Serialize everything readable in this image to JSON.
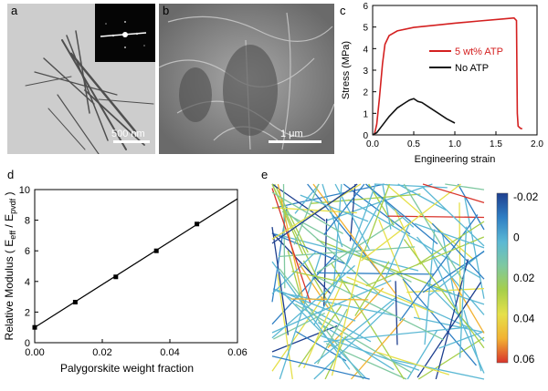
{
  "panels": {
    "a": {
      "label": "a",
      "scale": "500 nm"
    },
    "b": {
      "label": "b",
      "scale": "1 μm"
    },
    "c": {
      "label": "c"
    },
    "d": {
      "label": "d"
    },
    "e": {
      "label": "e"
    }
  },
  "chart_data": [
    {
      "id": "c",
      "type": "line",
      "xlabel": "Engineering strain",
      "ylabel": "Stress (MPa)",
      "xlim": [
        0,
        2.0
      ],
      "ylim": [
        0,
        6
      ],
      "xticks": [
        "0.0",
        "0.5",
        "1.0",
        "1.5",
        "2.0"
      ],
      "yticks": [
        "0",
        "1",
        "2",
        "3",
        "4",
        "5",
        "6"
      ],
      "legend_position": "right",
      "series": [
        {
          "name": "5 wt% ATP",
          "color": "#d42020",
          "x": [
            0.02,
            0.05,
            0.08,
            0.12,
            0.15,
            0.2,
            0.3,
            0.5,
            0.8,
            1.0,
            1.3,
            1.6,
            1.72,
            1.75,
            1.76,
            1.77,
            1.8,
            1.82
          ],
          "y": [
            0.0,
            0.5,
            1.6,
            3.3,
            4.2,
            4.6,
            4.82,
            4.98,
            5.1,
            5.18,
            5.28,
            5.38,
            5.42,
            5.3,
            1.0,
            0.4,
            0.3,
            0.28
          ]
        },
        {
          "name": "No ATP",
          "color": "#111111",
          "x": [
            0.0,
            0.05,
            0.1,
            0.15,
            0.2,
            0.3,
            0.4,
            0.45,
            0.5,
            0.55,
            0.6,
            0.7,
            0.8,
            0.9,
            1.0
          ],
          "y": [
            0.0,
            0.1,
            0.35,
            0.6,
            0.85,
            1.25,
            1.5,
            1.62,
            1.68,
            1.55,
            1.5,
            1.25,
            1.0,
            0.75,
            0.55
          ]
        }
      ]
    },
    {
      "id": "d",
      "type": "scatter",
      "xlabel": "Palygorskite weight fraction",
      "ylabel": "Relative Modulus ( E",
      "ylabel_sub1": "eff",
      "ylabel_mid": " / E",
      "ylabel_sub2": "pvdf",
      "ylabel_end": " )",
      "xlim": [
        0,
        0.06
      ],
      "ylim": [
        0,
        10
      ],
      "xticks": [
        "0.00",
        "0.02",
        "0.04",
        "0.06"
      ],
      "yticks": [
        "0",
        "2",
        "4",
        "6",
        "8",
        "10"
      ],
      "points": {
        "x": [
          0.0,
          0.012,
          0.024,
          0.036,
          0.048
        ],
        "y": [
          1.0,
          2.65,
          4.3,
          6.0,
          7.75
        ]
      },
      "fit_line": {
        "x": [
          0.0,
          0.06
        ],
        "y": [
          1.0,
          9.4
        ]
      }
    },
    {
      "id": "e",
      "type": "heatmap",
      "colorbar_ticks": [
        "-0.02",
        "0",
        "0.02",
        "0.04",
        "0.06"
      ],
      "colorbar_range": [
        -0.02,
        0.06
      ],
      "colors": [
        "#1e3f8f",
        "#2f7fc4",
        "#5bb8d4",
        "#7fc8a0",
        "#a6cf4a",
        "#e6e04a",
        "#f2b233",
        "#d9342b"
      ]
    }
  ]
}
